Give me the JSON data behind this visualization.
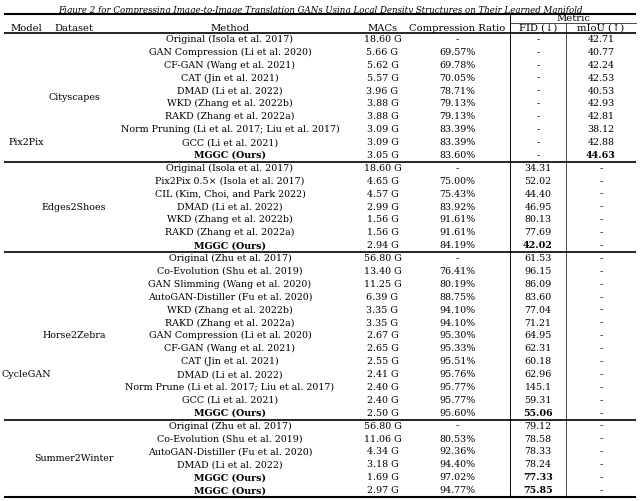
{
  "title": "Figure 2 for Compressing Image-to-Image Translation GANs Using Local Density Structures on Their Learned Manifold",
  "rows": [
    {
      "model": "Pix2Pix",
      "dataset": "Cityscapes",
      "method": "Original (Isola et al. 2017)",
      "macs": "18.60 G",
      "compression": "-",
      "fid": "-",
      "miou": "42.71",
      "bold_method": false,
      "bold_fid": false,
      "bold_miou": false
    },
    {
      "model": "",
      "dataset": "",
      "method": "GAN Compression (Li et al. 2020)",
      "macs": "5.66 G",
      "compression": "69.57%",
      "fid": "-",
      "miou": "40.77",
      "bold_method": false,
      "bold_fid": false,
      "bold_miou": false
    },
    {
      "model": "",
      "dataset": "",
      "method": "CF-GAN (Wang et al. 2021)",
      "macs": "5.62 G",
      "compression": "69.78%",
      "fid": "-",
      "miou": "42.24",
      "bold_method": false,
      "bold_fid": false,
      "bold_miou": false
    },
    {
      "model": "",
      "dataset": "",
      "method": "CAT (Jin et al. 2021)",
      "macs": "5.57 G",
      "compression": "70.05%",
      "fid": "-",
      "miou": "42.53",
      "bold_method": false,
      "bold_fid": false,
      "bold_miou": false
    },
    {
      "model": "",
      "dataset": "",
      "method": "DMAD (Li et al. 2022)",
      "macs": "3.96 G",
      "compression": "78.71%",
      "fid": "-",
      "miou": "40.53",
      "bold_method": false,
      "bold_fid": false,
      "bold_miou": false
    },
    {
      "model": "",
      "dataset": "",
      "method": "WKD (Zhang et al. 2022b)",
      "macs": "3.88 G",
      "compression": "79.13%",
      "fid": "-",
      "miou": "42.93",
      "bold_method": false,
      "bold_fid": false,
      "bold_miou": false
    },
    {
      "model": "",
      "dataset": "",
      "method": "RAKD (Zhang et al. 2022a)",
      "macs": "3.88 G",
      "compression": "79.13%",
      "fid": "-",
      "miou": "42.81",
      "bold_method": false,
      "bold_fid": false,
      "bold_miou": false
    },
    {
      "model": "",
      "dataset": "",
      "method": "Norm Pruning (Li et al. 2017; Liu et al. 2017)",
      "macs": "3.09 G",
      "compression": "83.39%",
      "fid": "-",
      "miou": "38.12",
      "bold_method": false,
      "bold_fid": false,
      "bold_miou": false
    },
    {
      "model": "",
      "dataset": "",
      "method": "GCC (Li et al. 2021)",
      "macs": "3.09 G",
      "compression": "83.39%",
      "fid": "-",
      "miou": "42.88",
      "bold_method": false,
      "bold_fid": false,
      "bold_miou": false
    },
    {
      "model": "",
      "dataset": "",
      "method": "MGGC (Ours)",
      "macs": "3.05 G",
      "compression": "83.60%",
      "fid": "-",
      "miou": "44.63",
      "bold_method": true,
      "bold_fid": false,
      "bold_miou": true
    },
    {
      "model": "",
      "dataset": "Edges2Shoes",
      "method": "Original (Isola et al. 2017)",
      "macs": "18.60 G",
      "compression": "-",
      "fid": "34.31",
      "miou": "-",
      "bold_method": false,
      "bold_fid": false,
      "bold_miou": false
    },
    {
      "model": "",
      "dataset": "",
      "method": "Pix2Pix 0.5× (Isola et al. 2017)",
      "macs": "4.65 G",
      "compression": "75.00%",
      "fid": "52.02",
      "miou": "-",
      "bold_method": false,
      "bold_fid": false,
      "bold_miou": false
    },
    {
      "model": "",
      "dataset": "",
      "method": "CIL (Kim, Choi, and Park 2022)",
      "macs": "4.57 G",
      "compression": "75.43%",
      "fid": "44.40",
      "miou": "-",
      "bold_method": false,
      "bold_fid": false,
      "bold_miou": false
    },
    {
      "model": "",
      "dataset": "",
      "method": "DMAD (Li et al. 2022)",
      "macs": "2.99 G",
      "compression": "83.92%",
      "fid": "46.95",
      "miou": "-",
      "bold_method": false,
      "bold_fid": false,
      "bold_miou": false
    },
    {
      "model": "",
      "dataset": "",
      "method": "WKD (Zhang et al. 2022b)",
      "macs": "1.56 G",
      "compression": "91.61%",
      "fid": "80.13",
      "miou": "-",
      "bold_method": false,
      "bold_fid": false,
      "bold_miou": false
    },
    {
      "model": "",
      "dataset": "",
      "method": "RAKD (Zhang et al. 2022a)",
      "macs": "1.56 G",
      "compression": "91.61%",
      "fid": "77.69",
      "miou": "-",
      "bold_method": false,
      "bold_fid": false,
      "bold_miou": false
    },
    {
      "model": "",
      "dataset": "",
      "method": "MGGC (Ours)",
      "macs": "2.94 G",
      "compression": "84.19%",
      "fid": "42.02",
      "miou": "-",
      "bold_method": true,
      "bold_fid": true,
      "bold_miou": false
    },
    {
      "model": "CycleGAN",
      "dataset": "Horse2Zebra",
      "method": "Original (Zhu et al. 2017)",
      "macs": "56.80 G",
      "compression": "-",
      "fid": "61.53",
      "miou": "-",
      "bold_method": false,
      "bold_fid": false,
      "bold_miou": false
    },
    {
      "model": "",
      "dataset": "",
      "method": "Co-Evolution (Shu et al. 2019)",
      "macs": "13.40 G",
      "compression": "76.41%",
      "fid": "96.15",
      "miou": "-",
      "bold_method": false,
      "bold_fid": false,
      "bold_miou": false
    },
    {
      "model": "",
      "dataset": "",
      "method": "GAN Slimming (Wang et al. 2020)",
      "macs": "11.25 G",
      "compression": "80.19%",
      "fid": "86.09",
      "miou": "-",
      "bold_method": false,
      "bold_fid": false,
      "bold_miou": false
    },
    {
      "model": "",
      "dataset": "",
      "method": "AutoGAN-Distiller (Fu et al. 2020)",
      "macs": "6.39 G",
      "compression": "88.75%",
      "fid": "83.60",
      "miou": "-",
      "bold_method": false,
      "bold_fid": false,
      "bold_miou": false
    },
    {
      "model": "",
      "dataset": "",
      "method": "WKD (Zhang et al. 2022b)",
      "macs": "3.35 G",
      "compression": "94.10%",
      "fid": "77.04",
      "miou": "-",
      "bold_method": false,
      "bold_fid": false,
      "bold_miou": false
    },
    {
      "model": "",
      "dataset": "",
      "method": "RAKD (Zhang et al. 2022a)",
      "macs": "3.35 G",
      "compression": "94.10%",
      "fid": "71.21",
      "miou": "-",
      "bold_method": false,
      "bold_fid": false,
      "bold_miou": false
    },
    {
      "model": "",
      "dataset": "",
      "method": "GAN Compression (Li et al. 2020)",
      "macs": "2.67 G",
      "compression": "95.30%",
      "fid": "64.95",
      "miou": "-",
      "bold_method": false,
      "bold_fid": false,
      "bold_miou": false
    },
    {
      "model": "",
      "dataset": "",
      "method": "CF-GAN (Wang et al. 2021)",
      "macs": "2.65 G",
      "compression": "95.33%",
      "fid": "62.31",
      "miou": "-",
      "bold_method": false,
      "bold_fid": false,
      "bold_miou": false
    },
    {
      "model": "",
      "dataset": "",
      "method": "CAT (Jin et al. 2021)",
      "macs": "2.55 G",
      "compression": "95.51%",
      "fid": "60.18",
      "miou": "-",
      "bold_method": false,
      "bold_fid": false,
      "bold_miou": false
    },
    {
      "model": "",
      "dataset": "",
      "method": "DMAD (Li et al. 2022)",
      "macs": "2.41 G",
      "compression": "95.76%",
      "fid": "62.96",
      "miou": "-",
      "bold_method": false,
      "bold_fid": false,
      "bold_miou": false
    },
    {
      "model": "",
      "dataset": "",
      "method": "Norm Prune (Li et al. 2017; Liu et al. 2017)",
      "macs": "2.40 G",
      "compression": "95.77%",
      "fid": "145.1",
      "miou": "-",
      "bold_method": false,
      "bold_fid": false,
      "bold_miou": false
    },
    {
      "model": "",
      "dataset": "",
      "method": "GCC (Li et al. 2021)",
      "macs": "2.40 G",
      "compression": "95.77%",
      "fid": "59.31",
      "miou": "-",
      "bold_method": false,
      "bold_fid": false,
      "bold_miou": false
    },
    {
      "model": "",
      "dataset": "",
      "method": "MGGC (Ours)",
      "macs": "2.50 G",
      "compression": "95.60%",
      "fid": "55.06",
      "miou": "-",
      "bold_method": true,
      "bold_fid": true,
      "bold_miou": false
    },
    {
      "model": "",
      "dataset": "Summer2Winter",
      "method": "Original (Zhu et al. 2017)",
      "macs": "56.80 G",
      "compression": "-",
      "fid": "79.12",
      "miou": "-",
      "bold_method": false,
      "bold_fid": false,
      "bold_miou": false
    },
    {
      "model": "",
      "dataset": "",
      "method": "Co-Evolution (Shu et al. 2019)",
      "macs": "11.06 G",
      "compression": "80.53%",
      "fid": "78.58",
      "miou": "-",
      "bold_method": false,
      "bold_fid": false,
      "bold_miou": false
    },
    {
      "model": "",
      "dataset": "",
      "method": "AutoGAN-Distiller (Fu et al. 2020)",
      "macs": "4.34 G",
      "compression": "92.36%",
      "fid": "78.33",
      "miou": "-",
      "bold_method": false,
      "bold_fid": false,
      "bold_miou": false
    },
    {
      "model": "",
      "dataset": "",
      "method": "DMAD (Li et al. 2022)",
      "macs": "3.18 G",
      "compression": "94.40%",
      "fid": "78.24",
      "miou": "-",
      "bold_method": false,
      "bold_fid": false,
      "bold_miou": false
    },
    {
      "model": "",
      "dataset": "",
      "method": "MGGC (Ours)",
      "macs": "1.69 G",
      "compression": "97.02%",
      "fid": "77.33",
      "miou": "-",
      "bold_method": true,
      "bold_fid": true,
      "bold_miou": false
    },
    {
      "model": "",
      "dataset": "",
      "method": "MGGC (Ours)",
      "macs": "2.97 G",
      "compression": "94.77%",
      "fid": "75.85",
      "miou": "-",
      "bold_method": true,
      "bold_fid": true,
      "bold_miou": false
    }
  ],
  "section_breaks_after": [
    9,
    16,
    29
  ],
  "dataset_spans": {
    "Cityscapes": [
      0,
      9
    ],
    "Edges2Shoes": [
      10,
      16
    ],
    "Horse2Zebra": [
      17,
      29
    ],
    "Summer2Winter": [
      30,
      35
    ]
  },
  "model_spans": {
    "Pix2Pix": [
      0,
      16
    ],
    "CycleGAN": [
      17,
      35
    ]
  },
  "bg_color": "#ffffff",
  "font_size": 6.8,
  "header_font_size": 7.2,
  "title_font_size": 6.2
}
